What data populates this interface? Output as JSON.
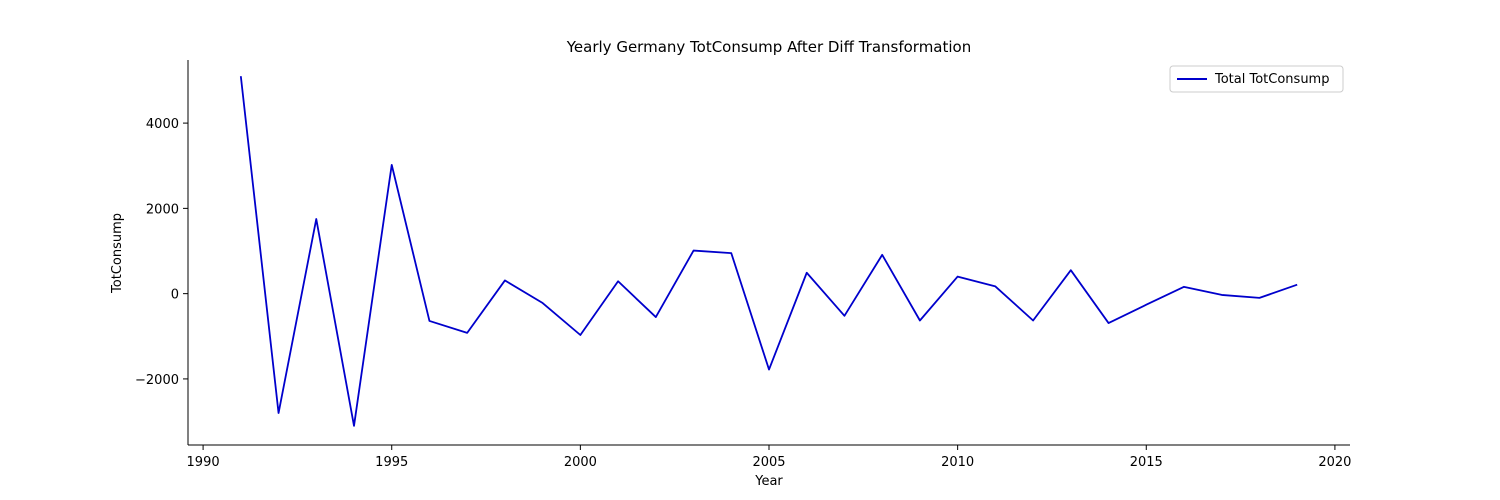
{
  "chart_data": {
    "type": "line",
    "title": "Yearly Germany TotConsump After Diff Transformation",
    "xlabel": "Year",
    "ylabel": "TotConsump",
    "xlim": [
      1989.6,
      2020.4
    ],
    "ylim": [
      -3550,
      5480
    ],
    "x_ticks": [
      1990,
      1995,
      2000,
      2005,
      2010,
      2015,
      2020
    ],
    "x_tick_labels": [
      "1990",
      "1995",
      "2000",
      "2005",
      "2010",
      "2015",
      "2020"
    ],
    "y_ticks": [
      -2000,
      0,
      2000,
      4000
    ],
    "y_tick_labels": [
      "−2000",
      "0",
      "2000",
      "4000"
    ],
    "grid": false,
    "legend_position": "top-right",
    "series": [
      {
        "name": "Total TotConsump",
        "color": "#0000cc",
        "x": [
          1991,
          1992,
          1993,
          1994,
          1995,
          1996,
          1997,
          1998,
          1999,
          2000,
          2001,
          2002,
          2003,
          2004,
          2005,
          2006,
          2007,
          2008,
          2009,
          2010,
          2011,
          2012,
          2013,
          2014,
          2015,
          2016,
          2017,
          2018,
          2019
        ],
        "y": [
          5100,
          -2800,
          1750,
          -3100,
          3020,
          -640,
          -920,
          310,
          -220,
          -970,
          290,
          -550,
          1010,
          950,
          -1780,
          490,
          -520,
          910,
          -630,
          400,
          170,
          -630,
          550,
          -690,
          -260,
          160,
          -30,
          -100,
          210
        ]
      }
    ]
  }
}
